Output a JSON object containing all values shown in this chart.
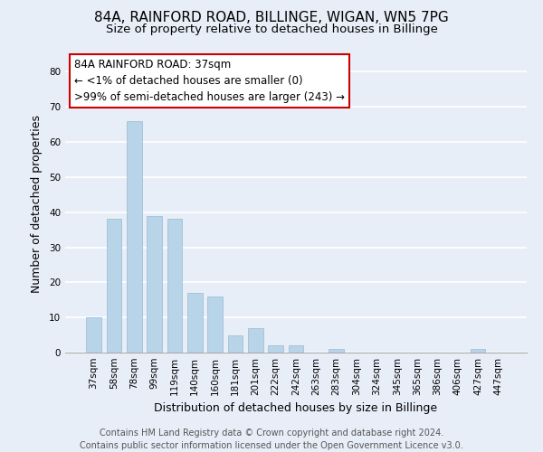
{
  "title": "84A, RAINFORD ROAD, BILLINGE, WIGAN, WN5 7PG",
  "subtitle": "Size of property relative to detached houses in Billinge",
  "xlabel": "Distribution of detached houses by size in Billinge",
  "ylabel": "Number of detached properties",
  "bar_labels": [
    "37sqm",
    "58sqm",
    "78sqm",
    "99sqm",
    "119sqm",
    "140sqm",
    "160sqm",
    "181sqm",
    "201sqm",
    "222sqm",
    "242sqm",
    "263sqm",
    "283sqm",
    "304sqm",
    "324sqm",
    "345sqm",
    "365sqm",
    "386sqm",
    "406sqm",
    "427sqm",
    "447sqm"
  ],
  "bar_values": [
    10,
    38,
    66,
    39,
    38,
    17,
    16,
    5,
    7,
    2,
    2,
    0,
    1,
    0,
    0,
    0,
    0,
    0,
    0,
    1,
    0
  ],
  "bar_color": "#b8d4e8",
  "ylim": [
    0,
    85
  ],
  "yticks": [
    0,
    10,
    20,
    30,
    40,
    50,
    60,
    70,
    80
  ],
  "annotation_line1": "84A RAINFORD ROAD: 37sqm",
  "annotation_line2": "← <1% of detached houses are smaller (0)",
  "annotation_line3": ">99% of semi-detached houses are larger (243) →",
  "annotation_box_facecolor": "#ffffff",
  "annotation_border_color": "#cc0000",
  "footer_line1": "Contains HM Land Registry data © Crown copyright and database right 2024.",
  "footer_line2": "Contains public sector information licensed under the Open Government Licence v3.0.",
  "background_color": "#e8eef8",
  "grid_color": "#ffffff",
  "title_fontsize": 11,
  "subtitle_fontsize": 9.5,
  "axis_label_fontsize": 9,
  "tick_fontsize": 7.5,
  "footer_fontsize": 7,
  "ann_fontsize": 8.5
}
